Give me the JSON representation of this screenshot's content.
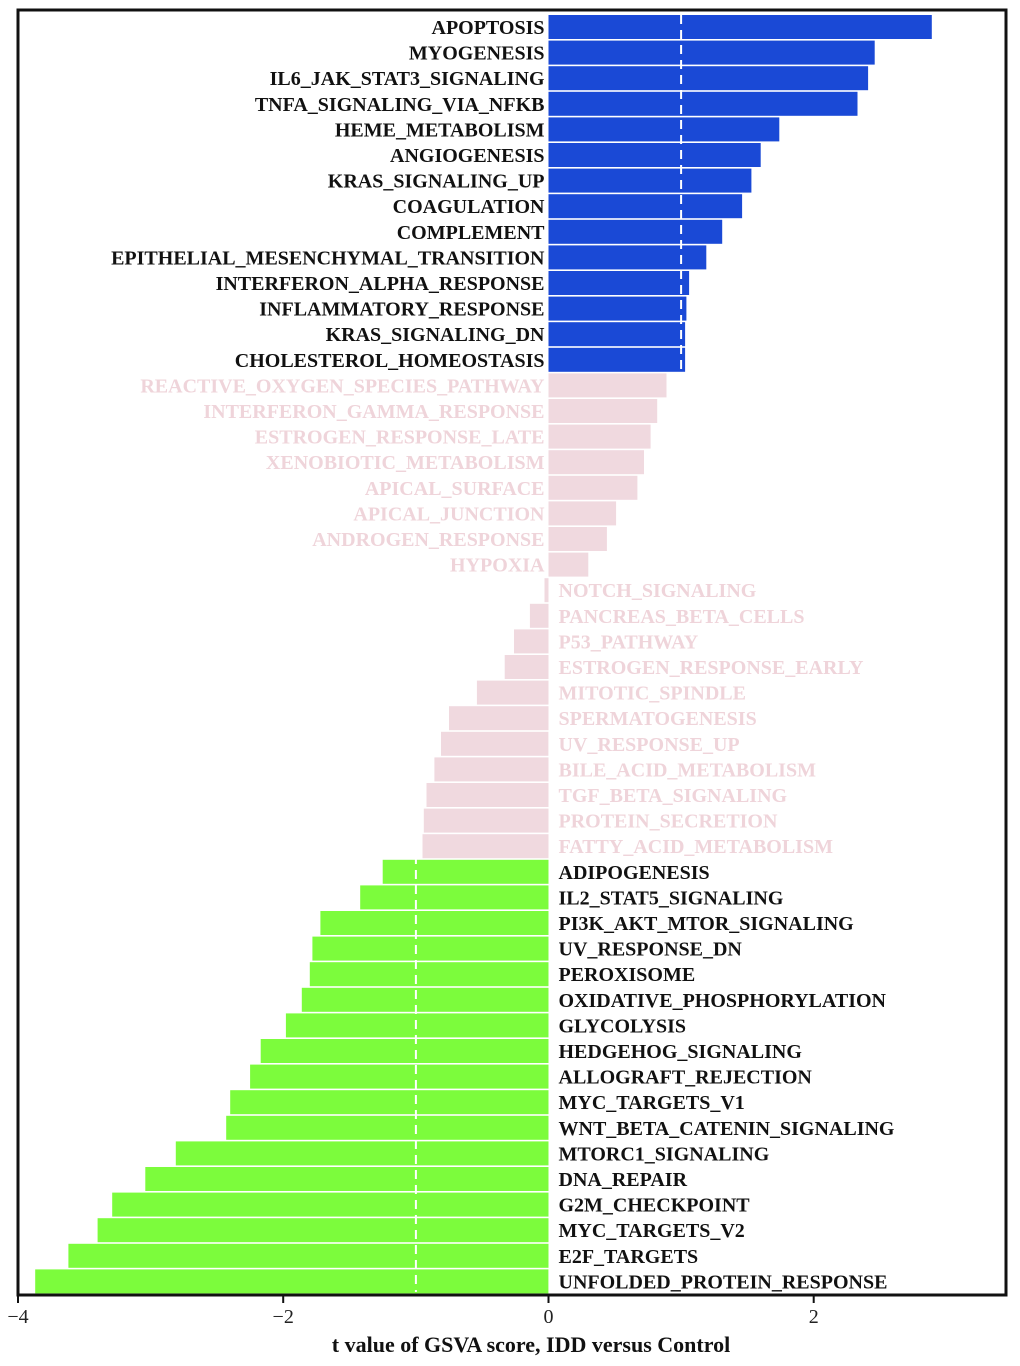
{
  "chart_data": {
    "type": "bar",
    "orientation": "horizontal",
    "xlabel": "t value of GSVA score, IDD versus Control",
    "xlim": [
      -4,
      3.45
    ],
    "xticks": [
      -4,
      -2,
      0,
      2
    ],
    "tick_labels": [
      "−4",
      "−2",
      "0",
      "2"
    ],
    "thresholds": [
      -1,
      1
    ],
    "colors": {
      "up": "#1a49d6",
      "down": "#7cfc3c",
      "ns": "#f0d9df",
      "sig_text": "#111111",
      "ns_text": "#efd4da"
    },
    "categories": [
      "APOPTOSIS",
      "MYOGENESIS",
      "IL6_JAK_STAT3_SIGNALING",
      "TNFA_SIGNALING_VIA_NFKB",
      "HEME_METABOLISM",
      "ANGIOGENESIS",
      "KRAS_SIGNALING_UP",
      "COAGULATION",
      "COMPLEMENT",
      "EPITHELIAL_MESENCHYMAL_TRANSITION",
      "INTERFERON_ALPHA_RESPONSE",
      "INFLAMMATORY_RESPONSE",
      "KRAS_SIGNALING_DN",
      "CHOLESTEROL_HOMEOSTASIS",
      "REACTIVE_OXYGEN_SPECIES_PATHWAY",
      "INTERFERON_GAMMA_RESPONSE",
      "ESTROGEN_RESPONSE_LATE",
      "XENOBIOTIC_METABOLISM",
      "APICAL_SURFACE",
      "APICAL_JUNCTION",
      "ANDROGEN_RESPONSE",
      "HYPOXIA",
      "NOTCH_SIGNALING",
      "PANCREAS_BETA_CELLS",
      "P53_PATHWAY",
      "ESTROGEN_RESPONSE_EARLY",
      "MITOTIC_SPINDLE",
      "SPERMATOGENESIS",
      "UV_RESPONSE_UP",
      "BILE_ACID_METABOLISM",
      "TGF_BETA_SIGNALING",
      "PROTEIN_SECRETION",
      "FATTY_ACID_METABOLISM",
      "ADIPOGENESIS",
      "IL2_STAT5_SIGNALING",
      "PI3K_AKT_MTOR_SIGNALING",
      "UV_RESPONSE_DN",
      "PEROXISOME",
      "OXIDATIVE_PHOSPHORYLATION",
      "GLYCOLYSIS",
      "HEDGEHOG_SIGNALING",
      "ALLOGRAFT_REJECTION",
      "MYC_TARGETS_V1",
      "WNT_BETA_CATENIN_SIGNALING",
      "MTORC1_SIGNALING",
      "DNA_REPAIR",
      "G2M_CHECKPOINT",
      "MYC_TARGETS_V2",
      "E2F_TARGETS",
      "UNFOLDED_PROTEIN_RESPONSE"
    ],
    "values": [
      2.89,
      2.46,
      2.41,
      2.33,
      1.74,
      1.6,
      1.53,
      1.46,
      1.31,
      1.19,
      1.06,
      1.04,
      1.03,
      1.03,
      0.89,
      0.82,
      0.77,
      0.72,
      0.67,
      0.51,
      0.44,
      0.3,
      -0.03,
      -0.14,
      -0.26,
      -0.33,
      -0.54,
      -0.75,
      -0.81,
      -0.86,
      -0.92,
      -0.94,
      -0.95,
      -1.25,
      -1.42,
      -1.72,
      -1.78,
      -1.8,
      -1.86,
      -1.98,
      -2.17,
      -2.25,
      -2.4,
      -2.43,
      -2.81,
      -3.04,
      -3.29,
      -3.4,
      -3.62,
      -3.87
    ]
  }
}
